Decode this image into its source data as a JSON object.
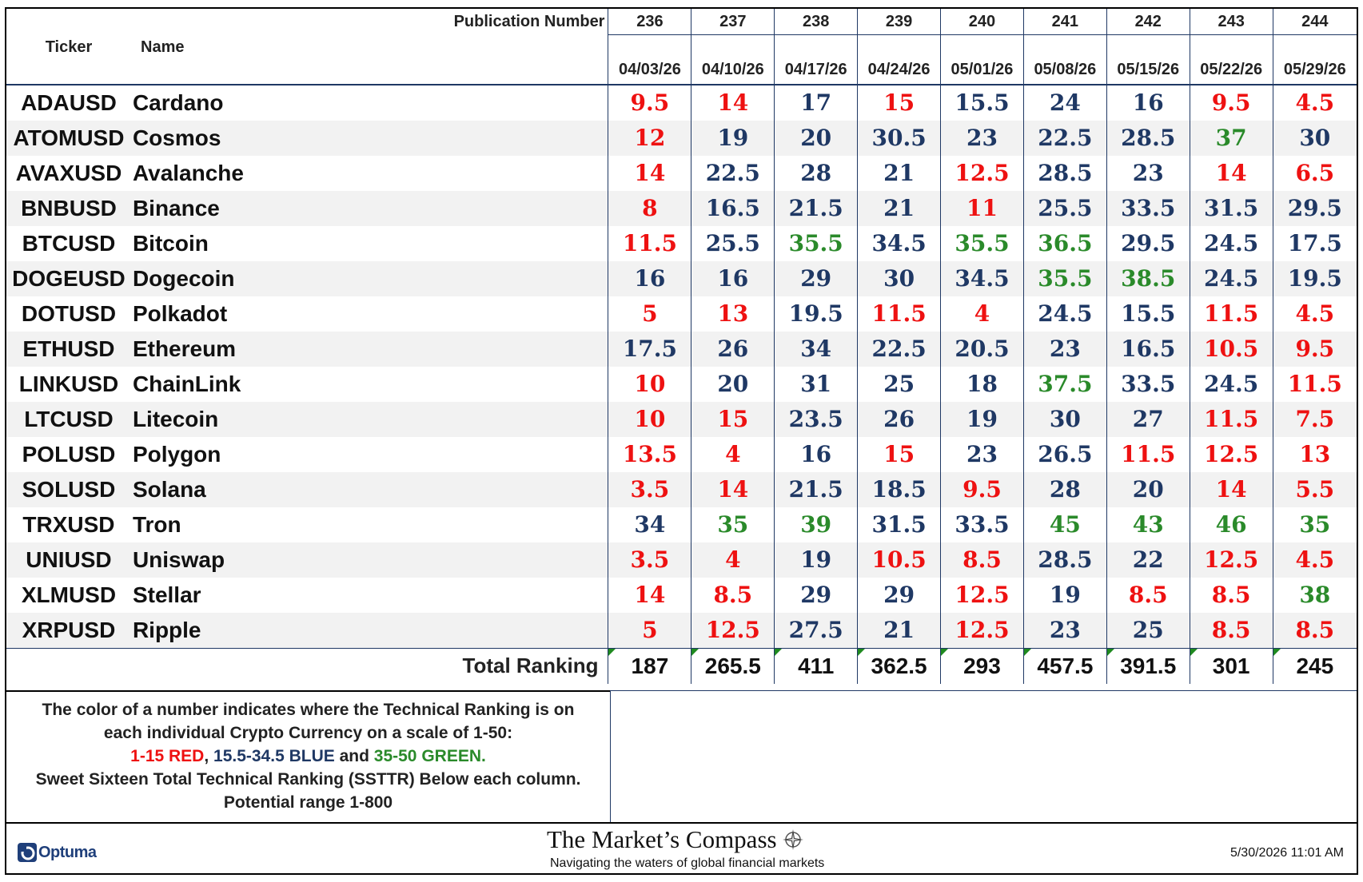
{
  "header": {
    "publication_label": "Publication Number",
    "ticker_label": "Ticker",
    "name_label": "Name",
    "columns": [
      {
        "pub": "236",
        "date": "04/03/26"
      },
      {
        "pub": "237",
        "date": "04/10/26"
      },
      {
        "pub": "238",
        "date": "04/17/26"
      },
      {
        "pub": "239",
        "date": "04/24/26"
      },
      {
        "pub": "240",
        "date": "05/01/26"
      },
      {
        "pub": "241",
        "date": "05/08/26"
      },
      {
        "pub": "242",
        "date": "05/15/26"
      },
      {
        "pub": "243",
        "date": "05/22/26"
      },
      {
        "pub": "244",
        "date": "05/29/26"
      }
    ]
  },
  "rows": [
    {
      "ticker": "ADAUSD",
      "name": "Cardano",
      "values": [
        "9.5",
        "14",
        "17",
        "15",
        "15.5",
        "24",
        "16",
        "9.5",
        "4.5"
      ]
    },
    {
      "ticker": "ATOMUSD",
      "name": "Cosmos",
      "values": [
        "12",
        "19",
        "20",
        "30.5",
        "23",
        "22.5",
        "28.5",
        "37",
        "30"
      ]
    },
    {
      "ticker": "AVAXUSD",
      "name": "Avalanche",
      "values": [
        "14",
        "22.5",
        "28",
        "21",
        "12.5",
        "28.5",
        "23",
        "14",
        "6.5"
      ]
    },
    {
      "ticker": "BNBUSD",
      "name": "Binance",
      "values": [
        "8",
        "16.5",
        "21.5",
        "21",
        "11",
        "25.5",
        "33.5",
        "31.5",
        "29.5"
      ]
    },
    {
      "ticker": "BTCUSD",
      "name": "Bitcoin",
      "values": [
        "11.5",
        "25.5",
        "35.5",
        "34.5",
        "35.5",
        "36.5",
        "29.5",
        "24.5",
        "17.5"
      ]
    },
    {
      "ticker": "DOGEUSD",
      "name": "Dogecoin",
      "values": [
        "16",
        "16",
        "29",
        "30",
        "34.5",
        "35.5",
        "38.5",
        "24.5",
        "19.5"
      ]
    },
    {
      "ticker": "DOTUSD",
      "name": "Polkadot",
      "values": [
        "5",
        "13",
        "19.5",
        "11.5",
        "4",
        "24.5",
        "15.5",
        "11.5",
        "4.5"
      ]
    },
    {
      "ticker": "ETHUSD",
      "name": "Ethereum",
      "values": [
        "17.5",
        "26",
        "34",
        "22.5",
        "20.5",
        "23",
        "16.5",
        "10.5",
        "9.5"
      ]
    },
    {
      "ticker": "LINKUSD",
      "name": "ChainLink",
      "values": [
        "10",
        "20",
        "31",
        "25",
        "18",
        "37.5",
        "33.5",
        "24.5",
        "11.5"
      ]
    },
    {
      "ticker": "LTCUSD",
      "name": "Litecoin",
      "values": [
        "10",
        "15",
        "23.5",
        "26",
        "19",
        "30",
        "27",
        "11.5",
        "7.5"
      ]
    },
    {
      "ticker": "POLUSD",
      "name": "Polygon",
      "values": [
        "13.5",
        "4",
        "16",
        "15",
        "23",
        "26.5",
        "11.5",
        "12.5",
        "13"
      ]
    },
    {
      "ticker": "SOLUSD",
      "name": "Solana",
      "values": [
        "3.5",
        "14",
        "21.5",
        "18.5",
        "9.5",
        "28",
        "20",
        "14",
        "5.5"
      ]
    },
    {
      "ticker": "TRXUSD",
      "name": "Tron",
      "values": [
        "34",
        "35",
        "39",
        "31.5",
        "33.5",
        "45",
        "43",
        "46",
        "35"
      ]
    },
    {
      "ticker": "UNIUSD",
      "name": "Uniswap",
      "values": [
        "3.5",
        "4",
        "19",
        "10.5",
        "8.5",
        "28.5",
        "22",
        "12.5",
        "4.5"
      ]
    },
    {
      "ticker": "XLMUSD",
      "name": "Stellar",
      "values": [
        "14",
        "8.5",
        "29",
        "29",
        "12.5",
        "19",
        "8.5",
        "8.5",
        "38"
      ]
    },
    {
      "ticker": "XRPUSD",
      "name": "Ripple",
      "values": [
        "5",
        "12.5",
        "27.5",
        "21",
        "12.5",
        "23",
        "25",
        "8.5",
        "8.5"
      ]
    }
  ],
  "totals": {
    "label": "Total Ranking",
    "values": [
      "187",
      "265.5",
      "411",
      "362.5",
      "293",
      "457.5",
      "391.5",
      "301",
      "245"
    ]
  },
  "color_scale": {
    "red": {
      "range": [
        1,
        15
      ],
      "color": "#ee1111"
    },
    "blue": {
      "range": [
        15.5,
        34.5
      ],
      "color": "#1f3864"
    },
    "green": {
      "range": [
        35,
        50
      ],
      "color": "#2a8a2a"
    }
  },
  "legend": {
    "line1": "The color of a number indicates where the Technical Ranking is on",
    "line2": "each individual Crypto Currency on a scale of 1-50:",
    "red_text": "1-15 RED",
    "sep1": ", ",
    "blue_text": "15.5-34.5 BLUE",
    "sep2": " and ",
    "green_text": "35-50 GREEN.",
    "line4": "Sweet Sixteen Total Technical Ranking (SSTTR) Below each column.",
    "line5": "Potential range 1-800"
  },
  "footer": {
    "optuma": "Optuma",
    "brand_title": "The Market’s Compass",
    "brand_subtitle": "Navigating the waters of global financial markets",
    "timestamp": "5/30/2026 11:01 AM"
  }
}
